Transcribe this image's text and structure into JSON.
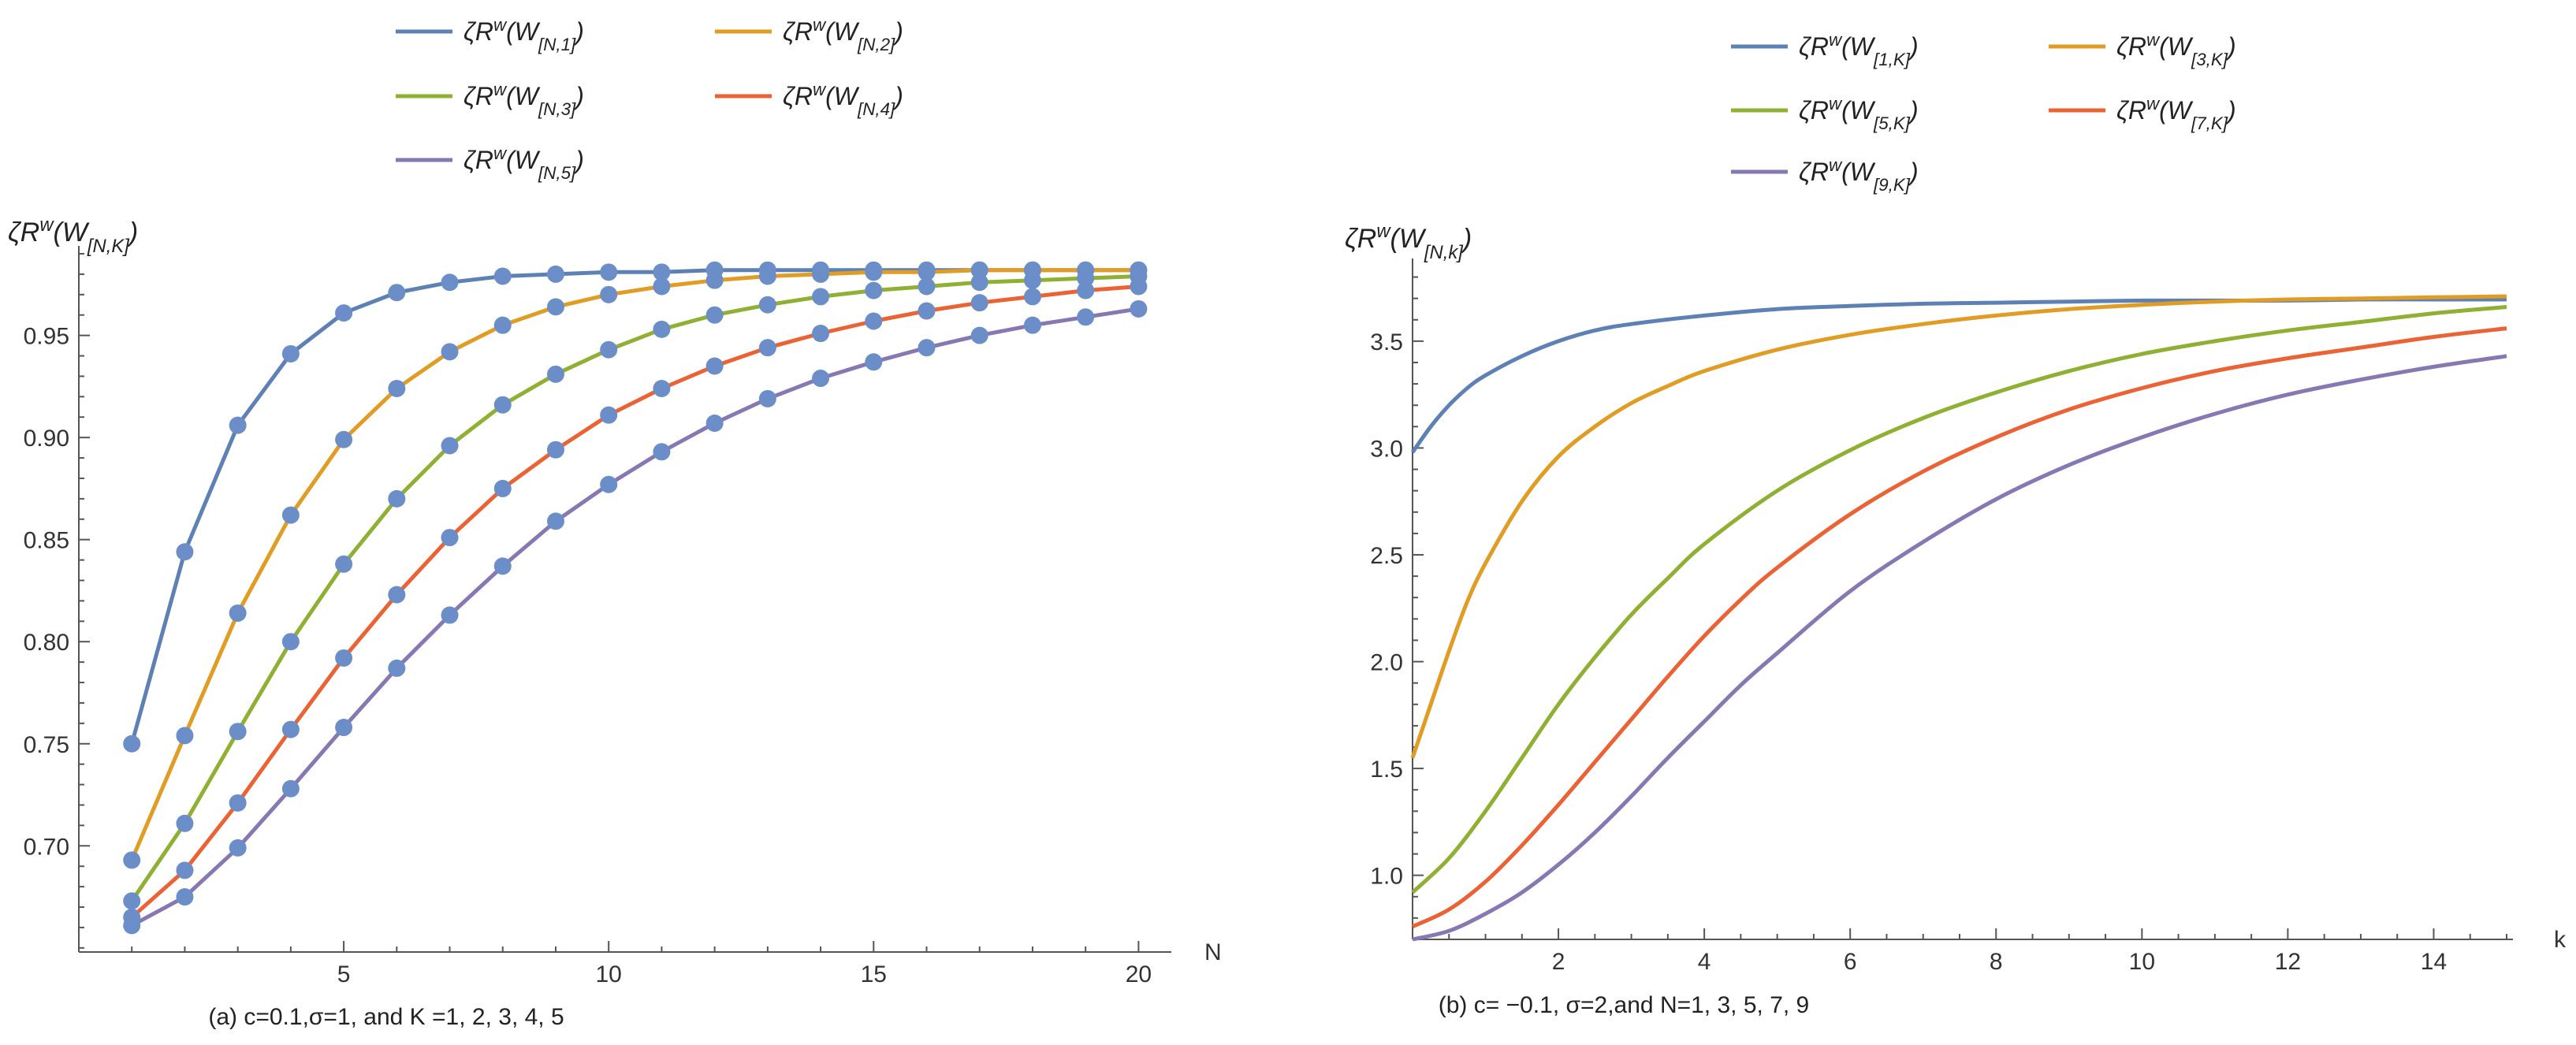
{
  "charts": [
    {
      "id": "a",
      "type": "line",
      "markers": true,
      "caption": "(a) c=0.1,σ=1, and K =1, 2, 3, 4, 5",
      "xlabel": "N",
      "ylabel": "ζR^w(W_[N,K])",
      "xlim": [
        0,
        20.5
      ],
      "ylim": [
        0.648,
        0.99
      ],
      "xticks": [
        5,
        10,
        15,
        20
      ],
      "yticks": [
        0.7,
        0.75,
        0.8,
        0.85,
        0.9,
        0.95
      ],
      "marker_color": "#6c8ec8",
      "series": [
        {
          "name": "ζR^w(W_[N,1])",
          "color": "#5e81b5",
          "x": [
            1,
            2,
            3,
            4,
            5,
            6,
            7,
            8,
            9,
            10,
            11,
            12,
            13,
            14,
            15,
            16,
            17,
            18,
            19,
            20
          ],
          "y": [
            0.75,
            0.844,
            0.906,
            0.941,
            0.961,
            0.971,
            0.976,
            0.979,
            0.98,
            0.981,
            0.981,
            0.982,
            0.982,
            0.982,
            0.982,
            0.982,
            0.982,
            0.982,
            0.982,
            0.982
          ]
        },
        {
          "name": "ζR^w(W_[N,2])",
          "color": "#e19c24",
          "x": [
            1,
            2,
            3,
            4,
            5,
            6,
            7,
            8,
            9,
            10,
            11,
            12,
            13,
            14,
            15,
            16,
            17,
            18,
            19,
            20
          ],
          "y": [
            0.693,
            0.754,
            0.814,
            0.862,
            0.899,
            0.924,
            0.942,
            0.955,
            0.964,
            0.97,
            0.974,
            0.977,
            0.979,
            0.98,
            0.981,
            0.981,
            0.982,
            0.982,
            0.982,
            0.982
          ]
        },
        {
          "name": "ζR^w(W_[N,3])",
          "color": "#8fb032",
          "x": [
            1,
            2,
            3,
            4,
            5,
            6,
            7,
            8,
            9,
            10,
            11,
            12,
            13,
            14,
            15,
            16,
            17,
            18,
            19,
            20
          ],
          "y": [
            0.673,
            0.711,
            0.756,
            0.8,
            0.838,
            0.87,
            0.896,
            0.916,
            0.931,
            0.943,
            0.953,
            0.96,
            0.965,
            0.969,
            0.972,
            0.974,
            0.976,
            0.977,
            0.978,
            0.979
          ]
        },
        {
          "name": "ζR^w(W_[N,4])",
          "color": "#eb6235",
          "x": [
            1,
            2,
            3,
            4,
            5,
            6,
            7,
            8,
            9,
            10,
            11,
            12,
            13,
            14,
            15,
            16,
            17,
            18,
            19,
            20
          ],
          "y": [
            0.665,
            0.688,
            0.721,
            0.757,
            0.792,
            0.823,
            0.851,
            0.875,
            0.894,
            0.911,
            0.924,
            0.935,
            0.944,
            0.951,
            0.957,
            0.962,
            0.966,
            0.969,
            0.972,
            0.974
          ]
        },
        {
          "name": "ζR^w(W_[N,5])",
          "color": "#8778b3",
          "x": [
            1,
            2,
            3,
            4,
            5,
            6,
            7,
            8,
            9,
            10,
            11,
            12,
            13,
            14,
            15,
            16,
            17,
            18,
            19,
            20
          ],
          "y": [
            0.661,
            0.675,
            0.699,
            0.728,
            0.758,
            0.787,
            0.813,
            0.837,
            0.859,
            0.877,
            0.893,
            0.907,
            0.919,
            0.929,
            0.937,
            0.944,
            0.95,
            0.955,
            0.959,
            0.963
          ]
        }
      ]
    },
    {
      "id": "b",
      "type": "line",
      "markers": false,
      "caption": "(b) c= −0.1, σ=2,and N=1, 3, 5, 7, 9",
      "xlabel": "k",
      "ylabel": "ζR^w(W_[N,k])",
      "xlim": [
        0,
        15
      ],
      "ylim": [
        0.7,
        3.85
      ],
      "xticks": [
        2,
        4,
        6,
        8,
        10,
        12,
        14
      ],
      "yticks": [
        1.0,
        1.5,
        2.0,
        2.5,
        3.0,
        3.5
      ],
      "series": [
        {
          "name": "ζR^w(W_[1,K])",
          "color": "#5e81b5",
          "x": [
            0,
            0.25,
            0.5,
            0.75,
            1,
            1.5,
            2,
            2.5,
            3,
            4,
            5,
            6,
            7,
            8,
            9,
            10,
            11,
            12,
            13,
            14,
            15
          ],
          "y": [
            2.98,
            3.1,
            3.2,
            3.28,
            3.34,
            3.43,
            3.5,
            3.55,
            3.58,
            3.62,
            3.65,
            3.665,
            3.675,
            3.68,
            3.685,
            3.69,
            3.69,
            3.69,
            3.695,
            3.695,
            3.695
          ]
        },
        {
          "name": "ζR^w(W_[3,K])",
          "color": "#e19c24",
          "x": [
            0,
            0.25,
            0.5,
            0.75,
            1,
            1.5,
            2,
            2.5,
            3,
            3.5,
            4,
            5,
            6,
            7,
            8,
            9,
            10,
            11,
            12,
            13,
            14,
            15
          ],
          "y": [
            1.55,
            1.8,
            2.05,
            2.28,
            2.46,
            2.75,
            2.96,
            3.1,
            3.21,
            3.29,
            3.36,
            3.46,
            3.53,
            3.58,
            3.62,
            3.65,
            3.67,
            3.685,
            3.695,
            3.7,
            3.705,
            3.71
          ]
        },
        {
          "name": "ζR^w(W_[5,K])",
          "color": "#8fb032",
          "x": [
            0,
            0.5,
            1,
            1.5,
            2,
            2.5,
            3,
            3.5,
            4,
            5,
            6,
            7,
            8,
            9,
            10,
            11,
            12,
            13,
            14,
            15
          ],
          "y": [
            0.92,
            1.08,
            1.3,
            1.55,
            1.8,
            2.02,
            2.22,
            2.39,
            2.55,
            2.8,
            2.99,
            3.14,
            3.26,
            3.36,
            3.44,
            3.5,
            3.55,
            3.59,
            3.63,
            3.66
          ]
        },
        {
          "name": "ζR^w(W_[7,K])",
          "color": "#eb6235",
          "x": [
            0,
            0.5,
            1,
            1.5,
            2,
            2.5,
            3,
            3.5,
            4,
            4.5,
            5,
            6,
            7,
            8,
            9,
            10,
            11,
            12,
            13,
            14,
            15
          ],
          "y": [
            0.76,
            0.84,
            0.97,
            1.14,
            1.33,
            1.53,
            1.73,
            1.93,
            2.12,
            2.29,
            2.44,
            2.69,
            2.89,
            3.05,
            3.18,
            3.28,
            3.36,
            3.42,
            3.47,
            3.52,
            3.56
          ]
        },
        {
          "name": "ζR^w(W_[9,K])",
          "color": "#8778b3",
          "x": [
            0,
            0.5,
            1,
            1.5,
            2,
            2.5,
            3,
            3.5,
            4,
            4.5,
            5,
            6,
            7,
            8,
            9,
            10,
            11,
            12,
            13,
            14,
            15
          ],
          "y": [
            0.7,
            0.74,
            0.82,
            0.92,
            1.05,
            1.2,
            1.37,
            1.55,
            1.72,
            1.89,
            2.04,
            2.33,
            2.56,
            2.76,
            2.92,
            3.05,
            3.16,
            3.25,
            3.32,
            3.38,
            3.43
          ]
        }
      ]
    }
  ]
}
